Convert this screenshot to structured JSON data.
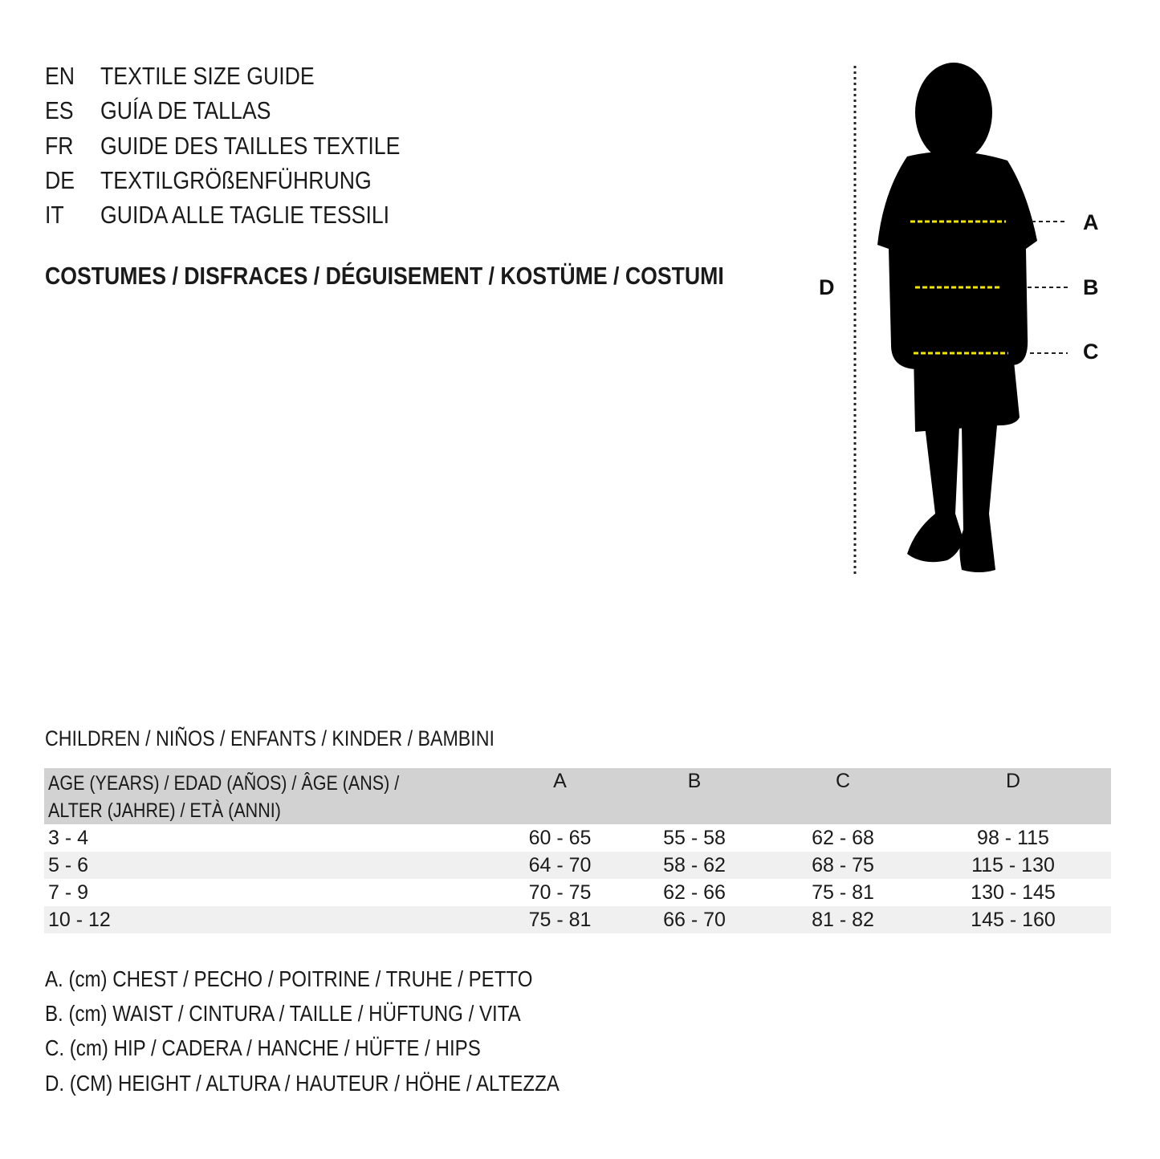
{
  "languages": [
    {
      "code": "EN",
      "title": "TEXTILE SIZE GUIDE"
    },
    {
      "code": "ES",
      "title": "GUÍA DE TALLAS"
    },
    {
      "code": "FR",
      "title": "GUIDE DES TAILLES TEXTILE"
    },
    {
      "code": "DE",
      "title": "TEXTILGRÖßENFÜHRUNG"
    },
    {
      "code": "IT",
      "title": "GUIDA ALLE TAGLIE TESSILI"
    }
  ],
  "category": "COSTUMES / DISFRACES / DÉGUISEMENT / KOSTÜME / COSTUMI",
  "figure": {
    "labels": {
      "a": "A",
      "b": "B",
      "c": "C",
      "d": "D"
    },
    "measure_line_color": "#f2e600"
  },
  "group": "CHILDREN / NIÑOS / ENFANTS / KINDER / BAMBINI",
  "table": {
    "header": {
      "age_line1": "AGE (YEARS) / EDAD (AÑOS) / ÂGE (ANS) /",
      "age_line2": "ALTER (JAHRE) / ETÀ (ANNI)",
      "a": "A",
      "b": "B",
      "c": "C",
      "d": "D"
    },
    "rows": [
      {
        "age": "3 - 4",
        "a": "60 - 65",
        "b": "55 - 58",
        "c": "62 - 68",
        "d": "98 - 115"
      },
      {
        "age": "5 - 6",
        "a": "64 - 70",
        "b": "58 - 62",
        "c": "68 - 75",
        "d": "115 - 130"
      },
      {
        "age": "7 - 9",
        "a": "70 - 75",
        "b": "62 - 66",
        "c": "75 - 81",
        "d": "130 - 145"
      },
      {
        "age": "10 - 12",
        "a": "75 - 81",
        "b": "66 - 70",
        "c": "81 - 82",
        "d": "145 - 160"
      }
    ]
  },
  "legend": [
    "A. (cm) CHEST / PECHO / POITRINE / TRUHE / PETTO",
    "B. (cm) WAIST / CINTURA / TAILLE / HÜFTUNG / VITA",
    "C. (cm) HIP / CADERA / HANCHE / HÜFTE / HIPS",
    "D. (CM) HEIGHT / ALTURA / HAUTEUR / HÖHE / ALTEZZA"
  ]
}
